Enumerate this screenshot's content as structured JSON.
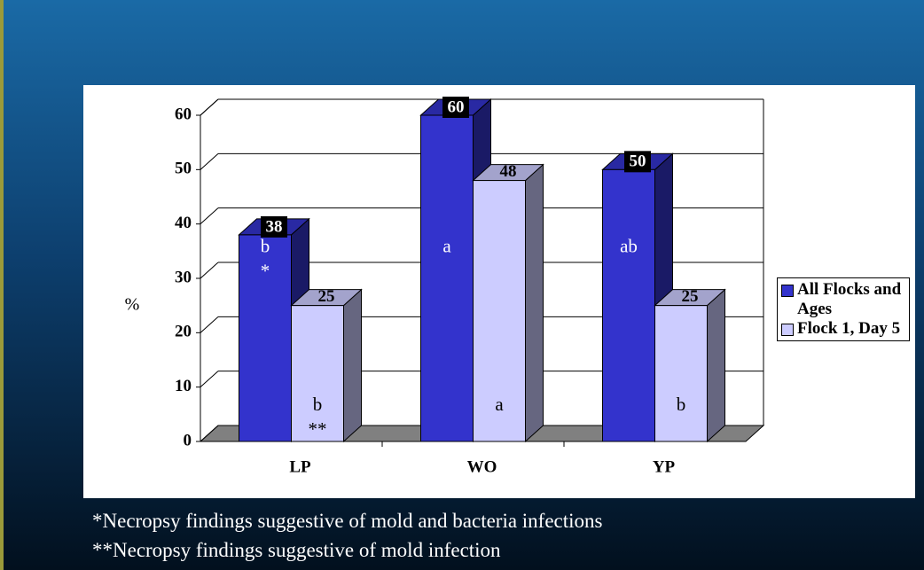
{
  "chart_data": {
    "type": "bar3d",
    "y_axis_label": "%",
    "categories": [
      "LP",
      "WO",
      "YP"
    ],
    "series": [
      {
        "name": "All Flocks and Ages",
        "color": "#3333cc",
        "values": [
          38,
          60,
          50
        ],
        "letters": [
          "b",
          "a",
          "ab"
        ],
        "marks": [
          "*"
        ]
      },
      {
        "name": "Flock 1, Day 5",
        "color": "#ccccff",
        "values": [
          25,
          48,
          25
        ],
        "letters": [
          "b",
          "a",
          "b"
        ],
        "marks": [
          "**"
        ]
      }
    ],
    "ylim": [
      0,
      60
    ],
    "yticks": [
      0,
      10,
      20,
      30,
      40,
      50,
      60
    ],
    "grid": true,
    "legend": "right"
  },
  "footnotes": [
    "*Necropsy findings suggestive of mold and bacteria infections",
    "**Necropsy findings suggestive of mold infection"
  ]
}
